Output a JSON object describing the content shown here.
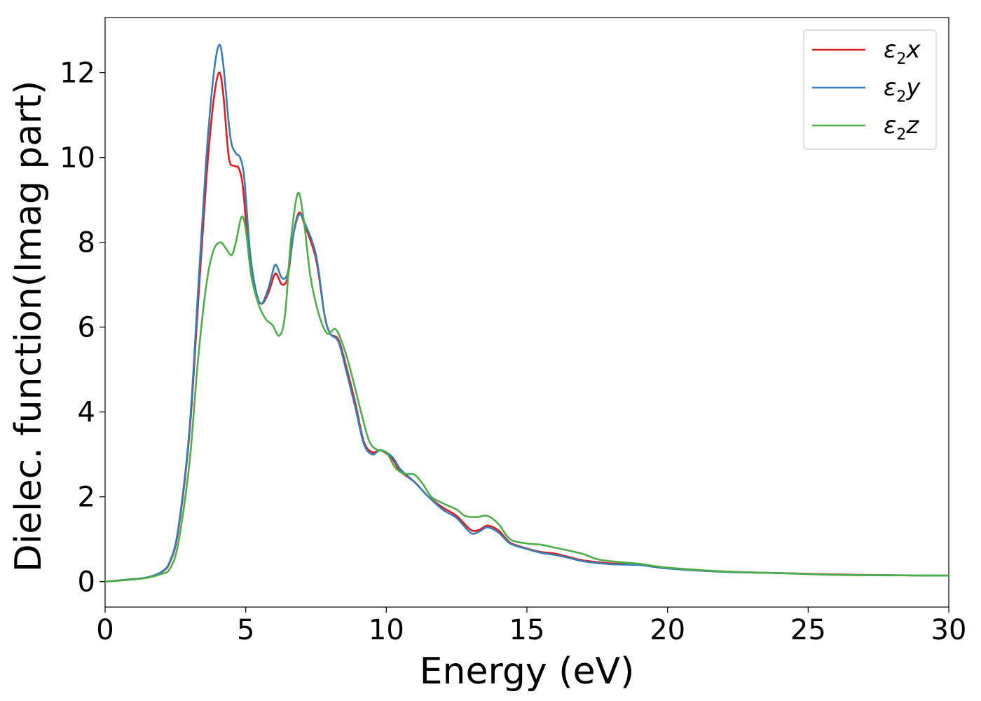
{
  "chart_data": {
    "type": "line",
    "title": "",
    "xlabel": "Energy (eV)",
    "ylabel": "Dielec. function(Imag part)",
    "xlim": [
      0,
      30
    ],
    "ylim": [
      -0.6,
      13.3
    ],
    "xticks": [
      0,
      5,
      10,
      15,
      20,
      25,
      30
    ],
    "xtick_labels": [
      "0",
      "5",
      "10",
      "15",
      "20",
      "25",
      "30"
    ],
    "yticks": [
      0,
      2,
      4,
      6,
      8,
      10,
      12
    ],
    "ytick_labels": [
      "0",
      "2",
      "4",
      "6",
      "8",
      "10",
      "12"
    ],
    "grid": false,
    "legend_position": "top-right",
    "series": [
      {
        "name": "ε2x",
        "legend_base": "ε",
        "legend_sub": "2",
        "legend_var": "x",
        "color": "#e41a1c",
        "points": [
          [
            0,
            0.0
          ],
          [
            1,
            0.06
          ],
          [
            1.5,
            0.1
          ],
          [
            2,
            0.22
          ],
          [
            2.3,
            0.45
          ],
          [
            2.6,
            1.2
          ],
          [
            3.0,
            3.5
          ],
          [
            3.3,
            6.5
          ],
          [
            3.6,
            9.5
          ],
          [
            3.85,
            11.3
          ],
          [
            4.05,
            12.0
          ],
          [
            4.2,
            11.5
          ],
          [
            4.4,
            10.0
          ],
          [
            4.6,
            9.8
          ],
          [
            4.75,
            9.75
          ],
          [
            4.9,
            9.3
          ],
          [
            5.1,
            7.8
          ],
          [
            5.3,
            6.9
          ],
          [
            5.55,
            6.55
          ],
          [
            5.8,
            6.8
          ],
          [
            6.0,
            7.2
          ],
          [
            6.1,
            7.25
          ],
          [
            6.3,
            7.0
          ],
          [
            6.5,
            7.2
          ],
          [
            6.7,
            8.2
          ],
          [
            6.9,
            8.7
          ],
          [
            7.1,
            8.4
          ],
          [
            7.5,
            7.6
          ],
          [
            7.8,
            6.3
          ],
          [
            8.0,
            5.85
          ],
          [
            8.3,
            5.7
          ],
          [
            8.6,
            5.0
          ],
          [
            8.9,
            4.2
          ],
          [
            9.2,
            3.3
          ],
          [
            9.5,
            3.05
          ],
          [
            9.8,
            3.1
          ],
          [
            10.2,
            2.9
          ],
          [
            10.5,
            2.6
          ],
          [
            11.0,
            2.35
          ],
          [
            11.5,
            2.0
          ],
          [
            12.0,
            1.75
          ],
          [
            12.5,
            1.55
          ],
          [
            13.0,
            1.22
          ],
          [
            13.3,
            1.22
          ],
          [
            13.6,
            1.32
          ],
          [
            14.0,
            1.2
          ],
          [
            14.4,
            0.92
          ],
          [
            15.0,
            0.78
          ],
          [
            15.5,
            0.7
          ],
          [
            16.0,
            0.66
          ],
          [
            16.5,
            0.58
          ],
          [
            17.0,
            0.5
          ],
          [
            18.0,
            0.43
          ],
          [
            19.0,
            0.4
          ],
          [
            20.0,
            0.32
          ],
          [
            22.0,
            0.24
          ],
          [
            24.0,
            0.2
          ],
          [
            26.0,
            0.17
          ],
          [
            28.0,
            0.15
          ],
          [
            30.0,
            0.14
          ]
        ]
      },
      {
        "name": "ε2y",
        "legend_base": "ε",
        "legend_sub": "2",
        "legend_var": "y",
        "color": "#377eb8",
        "points": [
          [
            0,
            0.0
          ],
          [
            1,
            0.06
          ],
          [
            1.5,
            0.1
          ],
          [
            2,
            0.23
          ],
          [
            2.3,
            0.47
          ],
          [
            2.6,
            1.25
          ],
          [
            3.0,
            3.6
          ],
          [
            3.3,
            6.8
          ],
          [
            3.6,
            10.0
          ],
          [
            3.85,
            11.9
          ],
          [
            4.05,
            12.65
          ],
          [
            4.2,
            12.2
          ],
          [
            4.45,
            10.5
          ],
          [
            4.65,
            10.1
          ],
          [
            4.8,
            10.0
          ],
          [
            4.95,
            9.5
          ],
          [
            5.15,
            7.8
          ],
          [
            5.35,
            6.9
          ],
          [
            5.55,
            6.55
          ],
          [
            5.8,
            6.9
          ],
          [
            6.0,
            7.4
          ],
          [
            6.1,
            7.45
          ],
          [
            6.3,
            7.15
          ],
          [
            6.5,
            7.3
          ],
          [
            6.7,
            8.2
          ],
          [
            6.9,
            8.65
          ],
          [
            7.1,
            8.45
          ],
          [
            7.5,
            7.7
          ],
          [
            7.8,
            6.3
          ],
          [
            8.0,
            5.85
          ],
          [
            8.3,
            5.65
          ],
          [
            8.6,
            4.9
          ],
          [
            8.9,
            4.1
          ],
          [
            9.2,
            3.25
          ],
          [
            9.5,
            3.0
          ],
          [
            9.8,
            3.1
          ],
          [
            10.2,
            2.95
          ],
          [
            10.5,
            2.65
          ],
          [
            11.0,
            2.35
          ],
          [
            11.5,
            2.0
          ],
          [
            12.0,
            1.7
          ],
          [
            12.5,
            1.5
          ],
          [
            13.0,
            1.15
          ],
          [
            13.3,
            1.18
          ],
          [
            13.6,
            1.28
          ],
          [
            14.0,
            1.15
          ],
          [
            14.4,
            0.9
          ],
          [
            15.0,
            0.77
          ],
          [
            15.5,
            0.68
          ],
          [
            16.0,
            0.63
          ],
          [
            16.5,
            0.56
          ],
          [
            17.0,
            0.48
          ],
          [
            18.0,
            0.41
          ],
          [
            19.0,
            0.39
          ],
          [
            20.0,
            0.31
          ],
          [
            22.0,
            0.23
          ],
          [
            24.0,
            0.2
          ],
          [
            26.0,
            0.16
          ],
          [
            28.0,
            0.15
          ],
          [
            30.0,
            0.14
          ]
        ]
      },
      {
        "name": "ε2z",
        "legend_base": "ε",
        "legend_sub": "2",
        "legend_var": "z",
        "color": "#4daf4a",
        "points": [
          [
            0,
            0.0
          ],
          [
            1,
            0.05
          ],
          [
            1.5,
            0.09
          ],
          [
            2,
            0.18
          ],
          [
            2.3,
            0.3
          ],
          [
            2.6,
            0.9
          ],
          [
            3.0,
            2.8
          ],
          [
            3.3,
            5.2
          ],
          [
            3.6,
            7.0
          ],
          [
            3.85,
            7.8
          ],
          [
            4.1,
            8.0
          ],
          [
            4.3,
            7.85
          ],
          [
            4.5,
            7.7
          ],
          [
            4.65,
            8.0
          ],
          [
            4.85,
            8.6
          ],
          [
            5.0,
            8.3
          ],
          [
            5.2,
            7.2
          ],
          [
            5.45,
            6.55
          ],
          [
            5.7,
            6.2
          ],
          [
            5.95,
            6.05
          ],
          [
            6.2,
            5.8
          ],
          [
            6.4,
            6.3
          ],
          [
            6.6,
            8.0
          ],
          [
            6.85,
            9.15
          ],
          [
            7.05,
            8.6
          ],
          [
            7.3,
            7.2
          ],
          [
            7.6,
            6.3
          ],
          [
            7.9,
            5.85
          ],
          [
            8.2,
            5.95
          ],
          [
            8.5,
            5.5
          ],
          [
            8.8,
            4.8
          ],
          [
            9.1,
            4.0
          ],
          [
            9.4,
            3.3
          ],
          [
            9.7,
            3.1
          ],
          [
            10.0,
            3.05
          ],
          [
            10.3,
            2.7
          ],
          [
            10.6,
            2.55
          ],
          [
            11.0,
            2.52
          ],
          [
            11.3,
            2.3
          ],
          [
            11.6,
            2.0
          ],
          [
            12.0,
            1.85
          ],
          [
            12.5,
            1.7
          ],
          [
            12.8,
            1.55
          ],
          [
            13.2,
            1.52
          ],
          [
            13.6,
            1.55
          ],
          [
            14.0,
            1.35
          ],
          [
            14.4,
            1.0
          ],
          [
            15.0,
            0.9
          ],
          [
            15.5,
            0.87
          ],
          [
            16.0,
            0.8
          ],
          [
            16.5,
            0.73
          ],
          [
            17.0,
            0.65
          ],
          [
            17.5,
            0.53
          ],
          [
            18.0,
            0.48
          ],
          [
            19.0,
            0.42
          ],
          [
            20.0,
            0.33
          ],
          [
            22.0,
            0.24
          ],
          [
            24.0,
            0.2
          ],
          [
            26.0,
            0.16
          ],
          [
            28.0,
            0.15
          ],
          [
            30.0,
            0.14
          ]
        ]
      }
    ]
  }
}
